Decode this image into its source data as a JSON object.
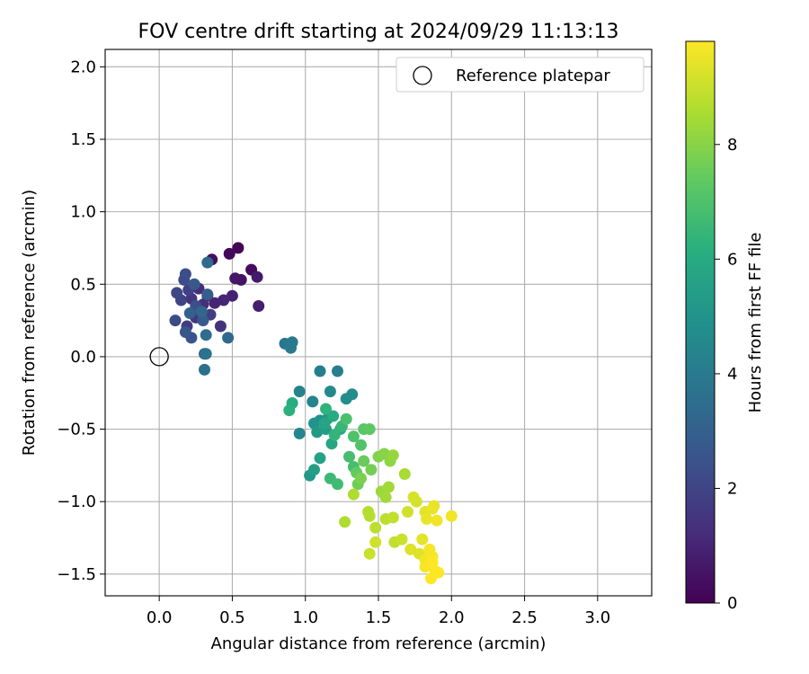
{
  "chart_data": {
    "type": "scatter",
    "title": "FOV centre drift starting at 2024/09/29 11:13:13",
    "xlabel": "Angular distance from reference (arcmin)",
    "ylabel": "Rotation from reference (arcmin)",
    "xlim": [
      -0.37,
      3.37
    ],
    "ylim": [
      -1.65,
      2.12
    ],
    "xticks": [
      0.0,
      0.5,
      1.0,
      1.5,
      2.0,
      2.5,
      3.0
    ],
    "xtick_labels": [
      "0.0",
      "0.5",
      "1.0",
      "1.5",
      "2.0",
      "2.5",
      "3.0"
    ],
    "yticks": [
      -1.5,
      -1.0,
      -0.5,
      0.0,
      0.5,
      1.0,
      1.5,
      2.0
    ],
    "ytick_labels": [
      "−1.5",
      "−1.0",
      "−0.5",
      "0.0",
      "0.5",
      "1.0",
      "1.5",
      "2.0"
    ],
    "grid": true,
    "legend": {
      "placement": "upper right",
      "entries": [
        "Reference platepar"
      ]
    },
    "reference_point": {
      "x": 0.0,
      "y": 0.0,
      "label": "Reference platepar"
    },
    "colorbar": {
      "label": "Hours from first FF file",
      "range": [
        0,
        9.8
      ],
      "ticks": [
        0,
        2,
        4,
        6,
        8
      ],
      "tick_labels": [
        "0",
        "2",
        "4",
        "6",
        "8"
      ],
      "colormap": "viridis"
    },
    "points": [
      [
        0.54,
        0.75,
        0.1
      ],
      [
        0.48,
        0.71,
        0.2
      ],
      [
        0.63,
        0.6,
        0.3
      ],
      [
        0.36,
        0.67,
        0.4
      ],
      [
        0.56,
        0.53,
        0.5
      ],
      [
        0.52,
        0.54,
        0.6
      ],
      [
        0.67,
        0.55,
        0.7
      ],
      [
        0.68,
        0.35,
        0.8
      ],
      [
        0.5,
        0.42,
        0.9
      ],
      [
        0.44,
        0.39,
        1.0
      ],
      [
        0.38,
        0.37,
        1.0
      ],
      [
        0.33,
        0.42,
        1.1
      ],
      [
        0.27,
        0.47,
        1.2
      ],
      [
        0.3,
        0.36,
        1.3
      ],
      [
        0.42,
        0.21,
        1.4
      ],
      [
        0.22,
        0.4,
        1.5
      ],
      [
        0.25,
        0.27,
        1.6
      ],
      [
        0.19,
        0.21,
        1.7
      ],
      [
        0.35,
        0.29,
        1.8
      ],
      [
        0.2,
        0.46,
        1.9
      ],
      [
        0.15,
        0.39,
        2.0
      ],
      [
        0.12,
        0.44,
        2.1
      ],
      [
        0.11,
        0.25,
        2.2
      ],
      [
        0.17,
        0.53,
        2.3
      ],
      [
        0.18,
        0.57,
        2.3
      ],
      [
        0.25,
        0.35,
        2.4
      ],
      [
        0.22,
        0.13,
        2.5
      ],
      [
        0.18,
        0.17,
        2.6
      ],
      [
        0.24,
        0.5,
        2.7
      ],
      [
        0.3,
        0.25,
        2.8
      ],
      [
        0.33,
        0.43,
        2.9
      ],
      [
        0.21,
        0.3,
        3.0
      ],
      [
        0.31,
        0.02,
        3.1
      ],
      [
        0.29,
        0.31,
        3.2
      ],
      [
        0.47,
        0.13,
        3.3
      ],
      [
        0.33,
        0.65,
        3.4
      ],
      [
        0.32,
        0.15,
        3.5
      ],
      [
        0.31,
        -0.09,
        3.6
      ],
      [
        0.32,
        0.02,
        3.7
      ],
      [
        0.86,
        0.09,
        3.8
      ],
      [
        0.91,
        0.1,
        3.9
      ],
      [
        0.9,
        0.06,
        4.0
      ],
      [
        1.1,
        -0.1,
        4.1
      ],
      [
        1.22,
        -0.1,
        4.2
      ],
      [
        0.96,
        -0.24,
        4.3
      ],
      [
        1.05,
        -0.31,
        4.4
      ],
      [
        0.96,
        -0.53,
        4.5
      ],
      [
        1.17,
        -0.24,
        4.6
      ],
      [
        1.32,
        -0.26,
        4.7
      ],
      [
        1.28,
        -0.29,
        4.8
      ],
      [
        1.1,
        -0.44,
        4.9
      ],
      [
        1.06,
        -0.46,
        5.0
      ],
      [
        1.15,
        -0.43,
        5.1
      ],
      [
        1.03,
        -0.82,
        5.2
      ],
      [
        1.08,
        -0.52,
        5.3
      ],
      [
        1.14,
        -0.5,
        5.4
      ],
      [
        1.06,
        -0.78,
        5.5
      ],
      [
        1.1,
        -0.7,
        5.6
      ],
      [
        1.13,
        -0.46,
        5.7
      ],
      [
        1.18,
        -0.6,
        5.8
      ],
      [
        1.24,
        -0.5,
        5.9
      ],
      [
        1.19,
        -0.41,
        6.0
      ],
      [
        0.91,
        -0.32,
        6.1
      ],
      [
        0.89,
        -0.37,
        6.2
      ],
      [
        1.14,
        -0.36,
        6.3
      ],
      [
        1.2,
        -0.54,
        6.4
      ],
      [
        1.25,
        -0.48,
        6.5
      ],
      [
        1.17,
        -0.84,
        6.6
      ],
      [
        1.22,
        -0.88,
        6.7
      ],
      [
        1.3,
        -0.69,
        6.8
      ],
      [
        1.33,
        -0.76,
        6.8
      ],
      [
        1.28,
        -0.43,
        6.9
      ],
      [
        1.33,
        -0.55,
        7.0
      ],
      [
        1.38,
        -0.61,
        7.1
      ],
      [
        1.4,
        -0.5,
        7.2
      ],
      [
        1.44,
        -0.5,
        7.3
      ],
      [
        1.35,
        -0.8,
        7.4
      ],
      [
        1.4,
        -0.72,
        7.5
      ],
      [
        1.36,
        -0.88,
        7.6
      ],
      [
        1.45,
        -0.78,
        7.7
      ],
      [
        1.38,
        -0.84,
        7.8
      ],
      [
        1.5,
        -0.69,
        7.9
      ],
      [
        1.54,
        -0.67,
        8.0
      ],
      [
        1.58,
        -0.72,
        8.1
      ],
      [
        1.6,
        -0.68,
        8.2
      ],
      [
        1.52,
        -0.93,
        8.3
      ],
      [
        1.55,
        -0.97,
        8.4
      ],
      [
        1.57,
        -0.9,
        8.4
      ],
      [
        1.68,
        -0.81,
        8.5
      ],
      [
        1.33,
        -0.95,
        8.6
      ],
      [
        1.27,
        -1.14,
        8.6
      ],
      [
        1.43,
        -1.07,
        8.7
      ],
      [
        1.44,
        -1.1,
        8.7
      ],
      [
        1.55,
        -1.12,
        8.8
      ],
      [
        1.48,
        -1.18,
        8.8
      ],
      [
        1.6,
        -1.11,
        8.9
      ],
      [
        1.61,
        -1.28,
        8.9
      ],
      [
        1.66,
        -1.26,
        9.0
      ],
      [
        1.44,
        -1.36,
        9.0
      ],
      [
        1.48,
        -1.28,
        9.1
      ],
      [
        1.7,
        -1.07,
        9.1
      ],
      [
        1.74,
        -0.97,
        9.2
      ],
      [
        1.76,
        -1.0,
        9.2
      ],
      [
        1.72,
        -1.33,
        9.3
      ],
      [
        1.78,
        -1.36,
        9.3
      ],
      [
        1.8,
        -1.26,
        9.4
      ],
      [
        1.82,
        -1.07,
        9.4
      ],
      [
        1.83,
        -1.12,
        9.5
      ],
      [
        1.87,
        -1.05,
        9.5
      ],
      [
        1.88,
        -1.03,
        9.5
      ],
      [
        1.9,
        -1.13,
        9.6
      ],
      [
        2.0,
        -1.1,
        9.6
      ],
      [
        1.82,
        -1.4,
        9.6
      ],
      [
        1.85,
        -1.33,
        9.7
      ],
      [
        1.87,
        -1.38,
        9.7
      ],
      [
        1.82,
        -1.45,
        9.7
      ],
      [
        1.89,
        -1.48,
        9.7
      ],
      [
        1.91,
        -1.49,
        9.8
      ],
      [
        1.86,
        -1.53,
        9.8
      ],
      [
        1.87,
        -1.42,
        9.8
      ]
    ]
  }
}
